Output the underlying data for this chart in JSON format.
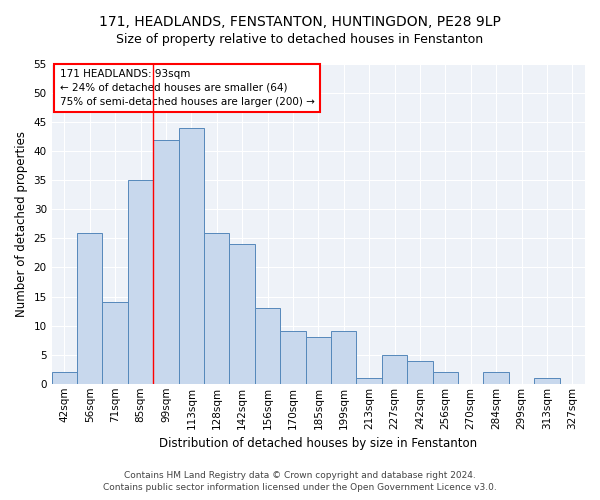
{
  "title1": "171, HEADLANDS, FENSTANTON, HUNTINGDON, PE28 9LP",
  "title2": "Size of property relative to detached houses in Fenstanton",
  "xlabel": "Distribution of detached houses by size in Fenstanton",
  "ylabel": "Number of detached properties",
  "categories": [
    "42sqm",
    "56sqm",
    "71sqm",
    "85sqm",
    "99sqm",
    "113sqm",
    "128sqm",
    "142sqm",
    "156sqm",
    "170sqm",
    "185sqm",
    "199sqm",
    "213sqm",
    "227sqm",
    "242sqm",
    "256sqm",
    "270sqm",
    "284sqm",
    "299sqm",
    "313sqm",
    "327sqm"
  ],
  "values": [
    2,
    26,
    14,
    35,
    42,
    44,
    26,
    24,
    13,
    9,
    8,
    9,
    1,
    5,
    4,
    2,
    0,
    2,
    0,
    1,
    0
  ],
  "bar_color": "#c8d8ed",
  "bar_edge_color": "#5588bb",
  "red_line_bin_index": 4,
  "ylim": [
    0,
    55
  ],
  "yticks": [
    0,
    5,
    10,
    15,
    20,
    25,
    30,
    35,
    40,
    45,
    50,
    55
  ],
  "annotation_line1": "171 HEADLANDS: 93sqm",
  "annotation_line2": "← 24% of detached houses are smaller (64)",
  "annotation_line3": "75% of semi-detached houses are larger (200) →",
  "footer1": "Contains HM Land Registry data © Crown copyright and database right 2024.",
  "footer2": "Contains public sector information licensed under the Open Government Licence v3.0.",
  "bg_color": "#eef2f8",
  "grid_color": "#ffffff",
  "title_fontsize": 10,
  "subtitle_fontsize": 9,
  "axis_label_fontsize": 8.5,
  "tick_fontsize": 7.5,
  "annotation_fontsize": 7.5,
  "footer_fontsize": 6.5
}
